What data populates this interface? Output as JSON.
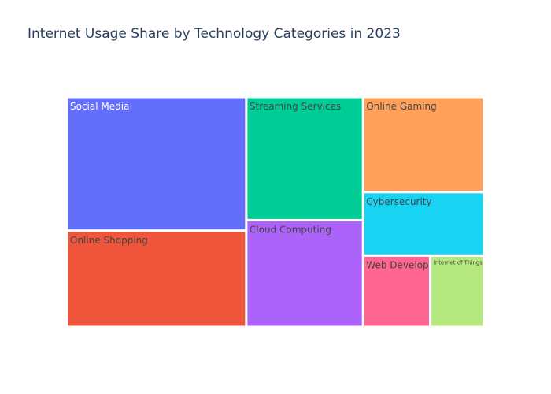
{
  "chart_data": {
    "type": "treemap",
    "title": "Internet Usage Share by Technology Categories in 2023",
    "categories": [
      "Social Media",
      "Online Shopping",
      "Streaming Services",
      "Cloud Computing",
      "Online Gaming",
      "Cybersecurity",
      "Web Development",
      "Internet of Things"
    ],
    "values": [
      25,
      18,
      15,
      13,
      12,
      8,
      5,
      4
    ],
    "colors": [
      "#636efa",
      "#ef553b",
      "#00cc96",
      "#ab63fa",
      "#ffa15a",
      "#19d3f3",
      "#ff6692",
      "#b6e880"
    ],
    "label_colors": [
      "#ffffff",
      "#444444",
      "#444444",
      "#444444",
      "#444444",
      "#444444",
      "#444444",
      "#444444"
    ]
  }
}
